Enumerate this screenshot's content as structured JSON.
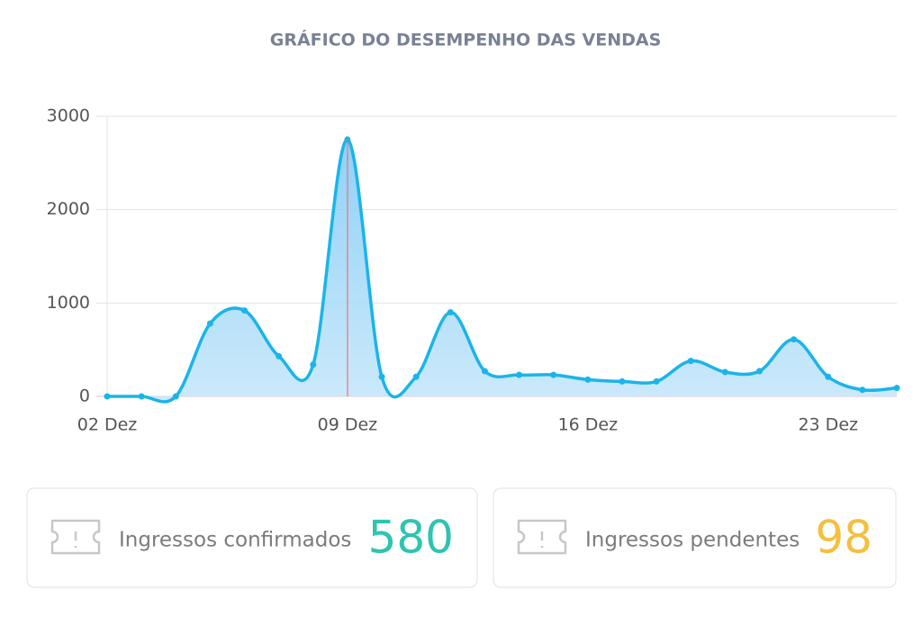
{
  "chart_data": {
    "type": "line",
    "title": "GRÁFICO DO DESEMPENHO DAS VENDAS",
    "categories": [
      "02 Dez",
      null,
      null,
      null,
      null,
      null,
      null,
      "09 Dez",
      null,
      null,
      null,
      null,
      null,
      null,
      "16 Dez",
      null,
      null,
      null,
      null,
      null,
      null,
      "23 Dez",
      null,
      null
    ],
    "values": [
      0,
      0,
      0,
      780,
      920,
      430,
      340,
      2750,
      210,
      210,
      900,
      270,
      230,
      230,
      180,
      160,
      160,
      380,
      260,
      270,
      610,
      210,
      70,
      90
    ],
    "color": "#1ab4ea",
    "ylim": [
      0,
      3000
    ],
    "yticks": [
      0,
      1000,
      2000,
      3000
    ],
    "grid": true
  },
  "cards": [
    {
      "label": "Ingressos confirmados",
      "value": "580",
      "color": "#2ec4b0"
    },
    {
      "label": "Ingressos pendentes",
      "value": "98",
      "color": "#f6bf3c"
    }
  ]
}
